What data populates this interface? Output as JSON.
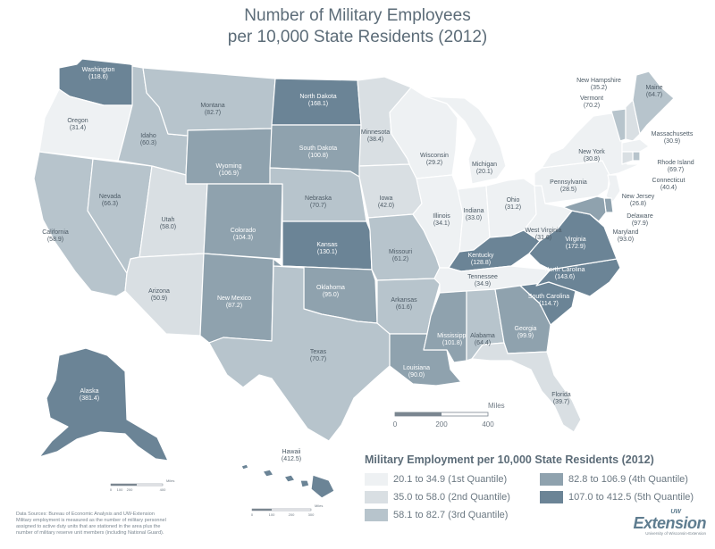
{
  "title": {
    "line1": "Number of Military Employees",
    "line2": "per 10,000 State Residents (2012)"
  },
  "colors": {
    "q1": "#eef1f3",
    "q2": "#d9dfe3",
    "q3": "#b7c4cc",
    "q4": "#8fa2ae",
    "q5": "#6b8496",
    "background": "#ffffff",
    "border": "#ffffff",
    "text": "#4d5b66"
  },
  "states": [
    {
      "id": "WA",
      "name": "Washington",
      "value": "(118.6)",
      "q": "q5"
    },
    {
      "id": "OR",
      "name": "Oregon",
      "value": "(31.4)",
      "q": "q1"
    },
    {
      "id": "CA",
      "name": "California",
      "value": "(58.9)",
      "q": "q3"
    },
    {
      "id": "NV",
      "name": "Nevada",
      "value": "(66.3)",
      "q": "q3"
    },
    {
      "id": "ID",
      "name": "Idaho",
      "value": "(60.3)",
      "q": "q3"
    },
    {
      "id": "MT",
      "name": "Montana",
      "value": "(82.7)",
      "q": "q3"
    },
    {
      "id": "WY",
      "name": "Wyoming",
      "value": "(106.9)",
      "q": "q4"
    },
    {
      "id": "UT",
      "name": "Utah",
      "value": "(58.0)",
      "q": "q2"
    },
    {
      "id": "AZ",
      "name": "Arizona",
      "value": "(50.9)",
      "q": "q2"
    },
    {
      "id": "CO",
      "name": "Colorado",
      "value": "(104.3)",
      "q": "q4"
    },
    {
      "id": "NM",
      "name": "New Mexico",
      "value": "(87.2)",
      "q": "q4"
    },
    {
      "id": "ND",
      "name": "North Dakota",
      "value": "(168.1)",
      "q": "q5"
    },
    {
      "id": "SD",
      "name": "South Dakota",
      "value": "(100.8)",
      "q": "q4"
    },
    {
      "id": "NE",
      "name": "Nebraska",
      "value": "(70.7)",
      "q": "q3"
    },
    {
      "id": "KS",
      "name": "Kansas",
      "value": "(130.1)",
      "q": "q5"
    },
    {
      "id": "OK",
      "name": "Oklahoma",
      "value": "(95.0)",
      "q": "q4"
    },
    {
      "id": "TX",
      "name": "Texas",
      "value": "(70.7)",
      "q": "q3"
    },
    {
      "id": "MN",
      "name": "Minnesota",
      "value": "(38.4)",
      "q": "q2"
    },
    {
      "id": "IA",
      "name": "Iowa",
      "value": "(42.0)",
      "q": "q2"
    },
    {
      "id": "MO",
      "name": "Missouri",
      "value": "(61.2)",
      "q": "q3"
    },
    {
      "id": "AR",
      "name": "Arkansas",
      "value": "(61.6)",
      "q": "q3"
    },
    {
      "id": "LA",
      "name": "Louisiana",
      "value": "(90.0)",
      "q": "q4"
    },
    {
      "id": "WI",
      "name": "Wisconsin",
      "value": "(29.2)",
      "q": "q1"
    },
    {
      "id": "IL",
      "name": "Illinois",
      "value": "(34.1)",
      "q": "q1"
    },
    {
      "id": "MI",
      "name": "Michigan",
      "value": "(20.1)",
      "q": "q1"
    },
    {
      "id": "IN",
      "name": "Indiana",
      "value": "(33.0)",
      "q": "q1"
    },
    {
      "id": "OH",
      "name": "Ohio",
      "value": "(31.2)",
      "q": "q1"
    },
    {
      "id": "KY",
      "name": "Kentucky",
      "value": "(128.8)",
      "q": "q5"
    },
    {
      "id": "TN",
      "name": "Tennessee",
      "value": "(34.9)",
      "q": "q1"
    },
    {
      "id": "MS",
      "name": "Mississippi",
      "value": "(101.8)",
      "q": "q4"
    },
    {
      "id": "AL",
      "name": "Alabama",
      "value": "(64.4)",
      "q": "q3"
    },
    {
      "id": "GA",
      "name": "Georgia",
      "value": "(99.9)",
      "q": "q4"
    },
    {
      "id": "FL",
      "name": "Florida",
      "value": "(39.7)",
      "q": "q2"
    },
    {
      "id": "SC",
      "name": "South Carolina",
      "value": "(114.7)",
      "q": "q5"
    },
    {
      "id": "NC",
      "name": "North Carolina",
      "value": "(143.6)",
      "q": "q5"
    },
    {
      "id": "VA",
      "name": "Virginia",
      "value": "(172.9)",
      "q": "q5"
    },
    {
      "id": "WV",
      "name": "West Virginia",
      "value": "(31.6)",
      "q": "q1"
    },
    {
      "id": "PA",
      "name": "Pennsylvania",
      "value": "(28.5)",
      "q": "q1"
    },
    {
      "id": "NY",
      "name": "New York",
      "value": "(30.8)",
      "q": "q1"
    },
    {
      "id": "VT",
      "name": "Vermont",
      "value": "(70.2)",
      "q": "q3"
    },
    {
      "id": "NH",
      "name": "New Hampshire",
      "value": "(35.2)",
      "q": "q2"
    },
    {
      "id": "ME",
      "name": "Maine",
      "value": "(64.7)",
      "q": "q3"
    },
    {
      "id": "MA",
      "name": "Massachusetts",
      "value": "(30.9)",
      "q": "q1"
    },
    {
      "id": "RI",
      "name": "Rhode Island",
      "value": "(69.7)",
      "q": "q3"
    },
    {
      "id": "CT",
      "name": "Connecticut",
      "value": "(40.4)",
      "q": "q2"
    },
    {
      "id": "NJ",
      "name": "New Jersey",
      "value": "(26.8)",
      "q": "q1"
    },
    {
      "id": "DE",
      "name": "Delaware",
      "value": "(97.9)",
      "q": "q4"
    },
    {
      "id": "MD",
      "name": "Maryland",
      "value": "(93.0)",
      "q": "q4"
    },
    {
      "id": "AK",
      "name": "Alaska",
      "value": "(381.4)",
      "q": "q5"
    },
    {
      "id": "HI",
      "name": "Hawaii",
      "value": "(412.5)",
      "q": "q5"
    }
  ],
  "scale_main": {
    "unit": "Miles",
    "ticks": [
      "0",
      "200",
      "400"
    ]
  },
  "scale_alaska": {
    "unit": "Miles",
    "ticks": [
      "0",
      "100",
      "200",
      "400"
    ]
  },
  "scale_hawaii": {
    "unit": "Miles",
    "ticks": [
      "0",
      "100",
      "200",
      "300"
    ]
  },
  "legend": {
    "title": "Military Employment per 10,000 State Residents (2012)",
    "items": [
      {
        "label": "20.1 to 34.9 (1st Quantile)",
        "q": "q1"
      },
      {
        "label": "82.8 to 106.9 (4th Quantile)",
        "q": "q4"
      },
      {
        "label": "35.0 to 58.0 (2nd Quantile)",
        "q": "q2"
      },
      {
        "label": "107.0 to 412.5 (5th Quantile)",
        "q": "q5"
      },
      {
        "label": "58.1 to 82.7 (3rd Quantile)",
        "q": "q3"
      }
    ]
  },
  "source": {
    "line1": "Data Sources: Bureau of Economic Analysis and UW-Extension",
    "line2": "Military employment is measured as the number of military personnel",
    "line3": "assigned to active duty units that are stationed in the area plus the",
    "line4": "number of military reserve unit members (including National Guard)."
  },
  "logo": {
    "uw": "UW",
    "name": "Extension",
    "sub": "University of Wisconsin-Extension"
  }
}
